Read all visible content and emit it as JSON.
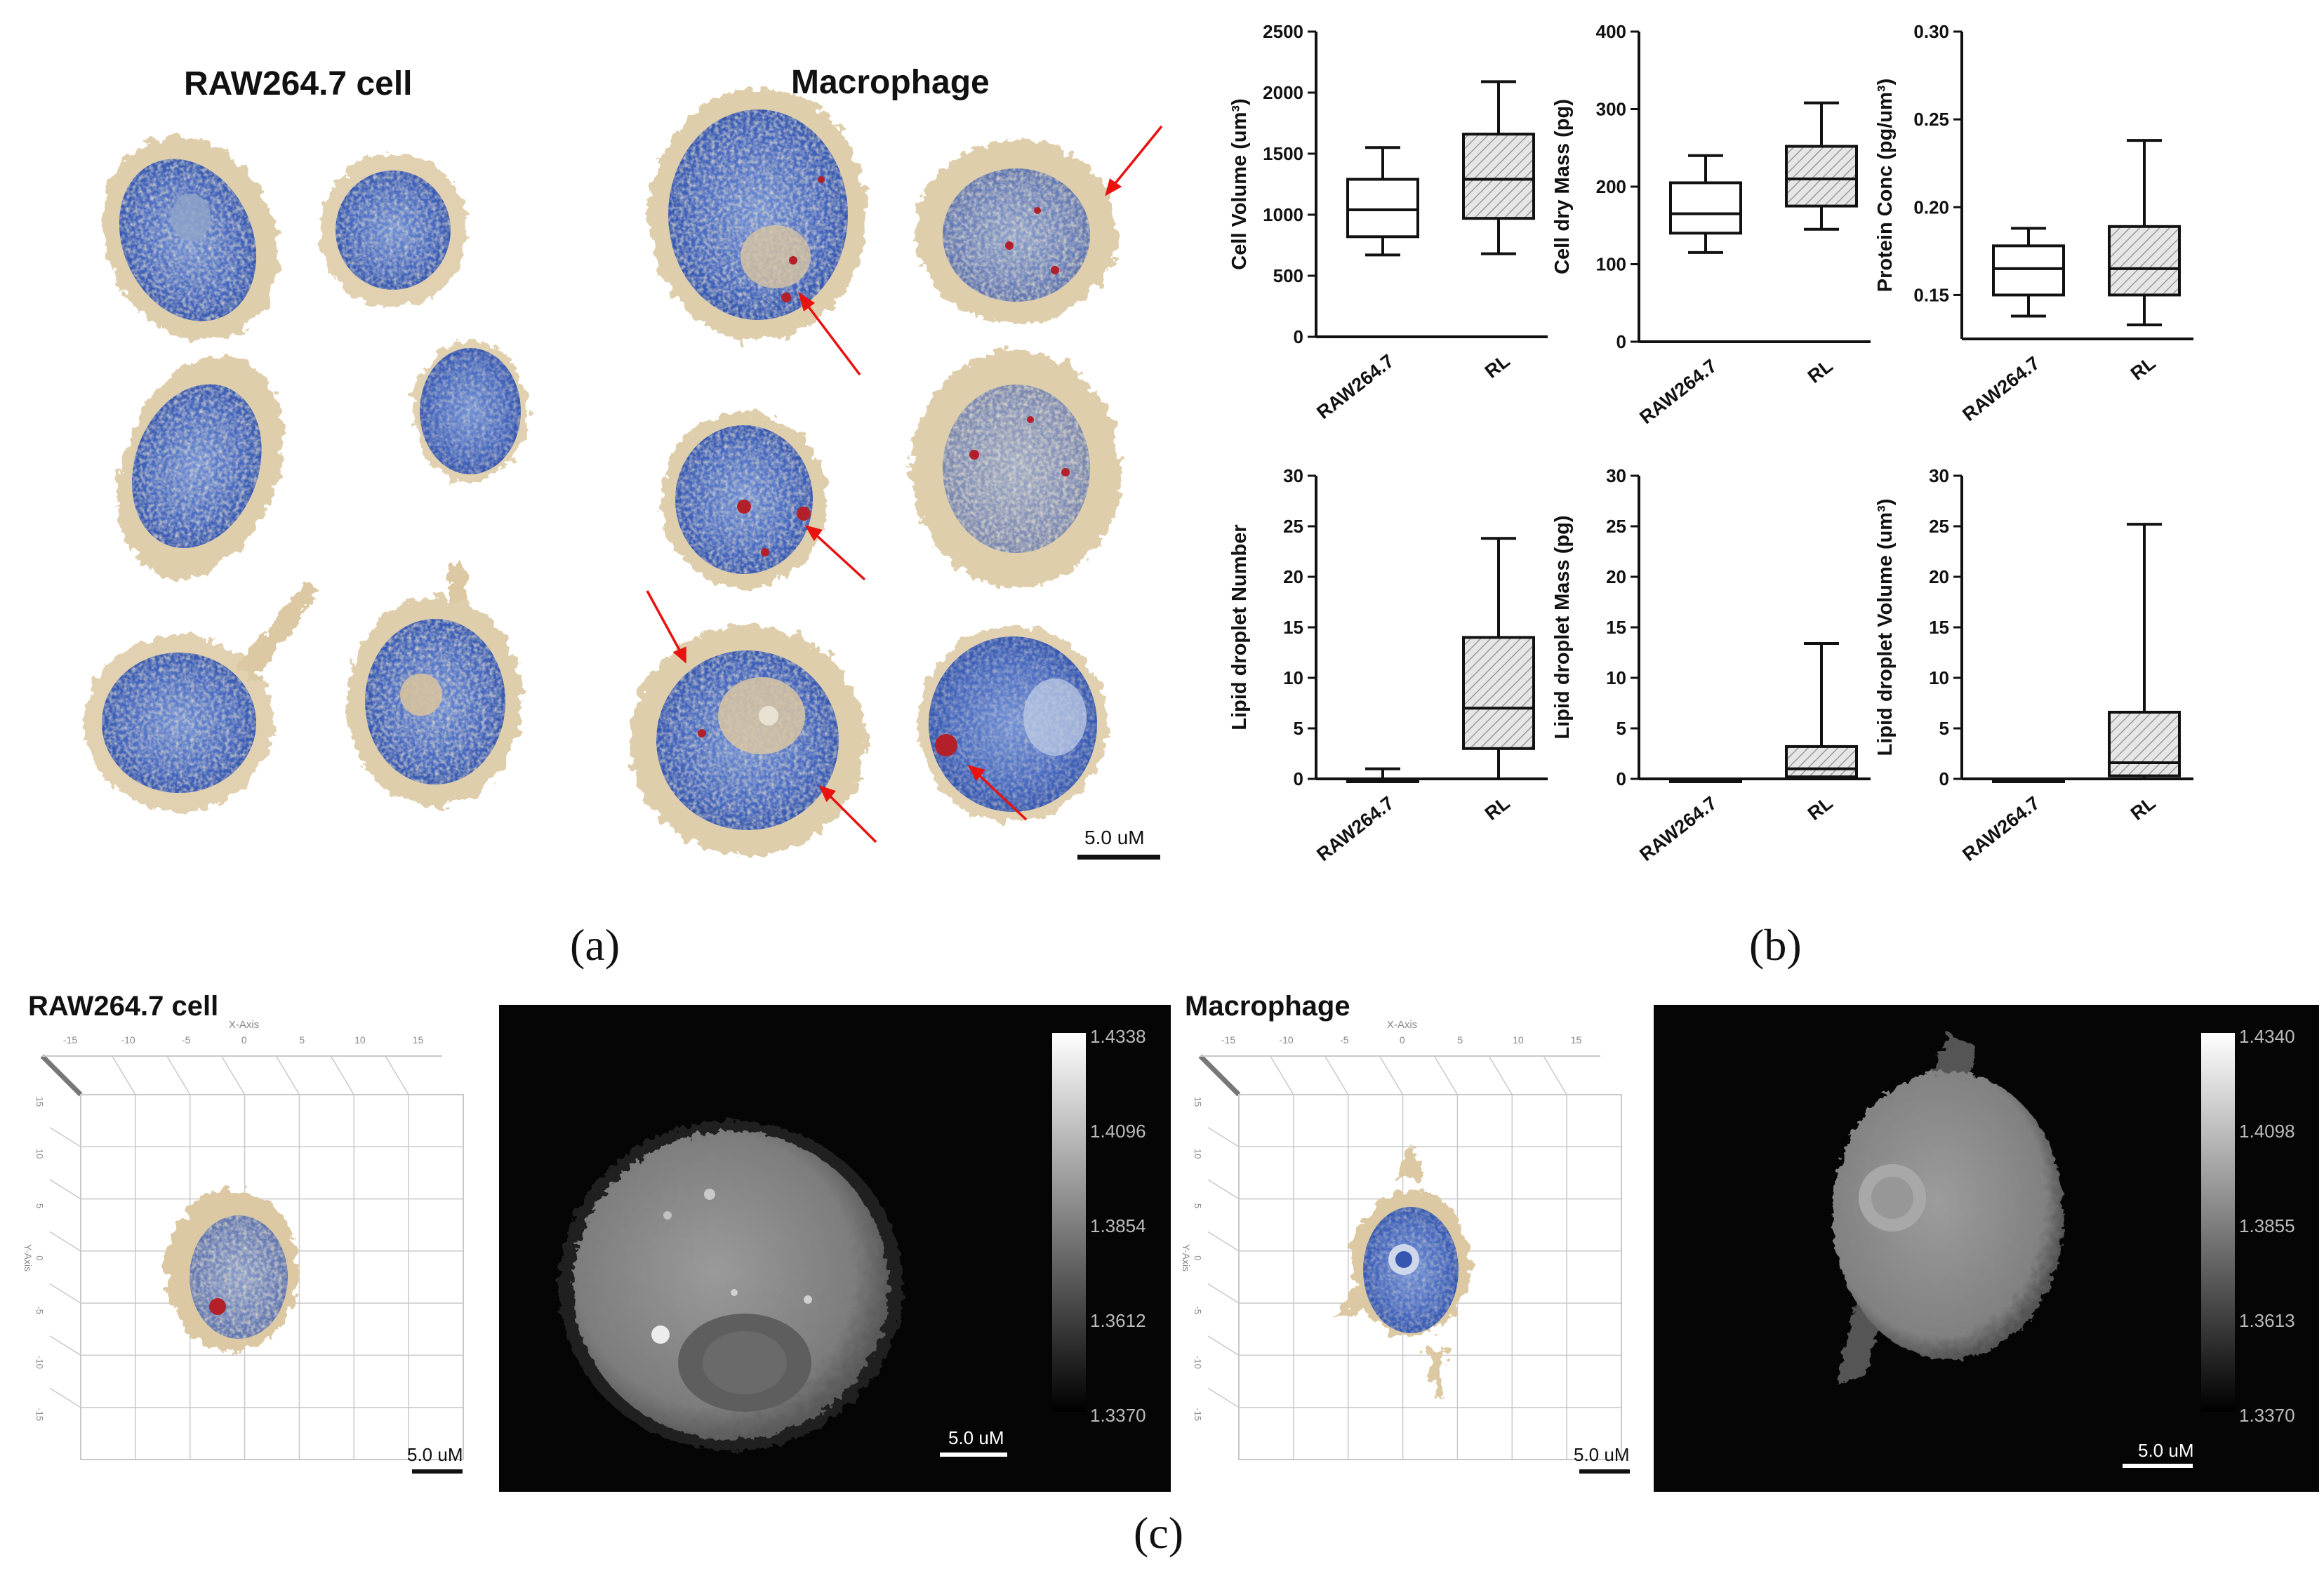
{
  "panel_a": {
    "heading_left": "RAW264.7 cell",
    "heading_right": "Macrophage",
    "scalebar": "5.0 uM",
    "letter": "(a)"
  },
  "panel_b": {
    "letter": "(b)"
  },
  "panel_c": {
    "letter": "(c)",
    "left_heading": "RAW264.7 cell",
    "right_heading": "Macrophage",
    "axis_title": "X-Axis",
    "y_axis_title": "Y-Axis",
    "x_ticks": [
      "-15",
      "-10",
      "-5",
      "0",
      "5",
      "10",
      "15"
    ],
    "y_ticks": [
      "15",
      "10",
      "5",
      "0",
      "-5",
      "-10",
      "-15"
    ],
    "scalebar": "5.0 uM",
    "left_colorbar": [
      "1.4338",
      "1.4096",
      "1.3854",
      "1.3612",
      "1.3370"
    ],
    "right_colorbar": [
      "1.4340",
      "1.4098",
      "1.3855",
      "1.3613",
      "1.3370"
    ]
  },
  "colors": {
    "cyto": "#dcc9a3",
    "nucleus": "#4a6cc0",
    "lipid": "#b3202a",
    "arrow": "#e8120f"
  },
  "chart_data": [
    {
      "type": "box",
      "ylabel": "Cell Volume (um³)",
      "categories": [
        "RAW264.7",
        "RL"
      ],
      "ylim": [
        0,
        2500
      ],
      "yticks": [
        0,
        500,
        1000,
        1500,
        2000,
        2500
      ],
      "boxes": [
        {
          "whislo": 670,
          "q1": 820,
          "med": 1040,
          "q3": 1290,
          "whishi": 1550
        },
        {
          "whislo": 680,
          "q1": 970,
          "med": 1290,
          "q3": 1660,
          "whishi": 2090
        }
      ]
    },
    {
      "type": "box",
      "ylabel": "Cell dry Mass  (pg)",
      "categories": [
        "RAW264.7",
        "RL"
      ],
      "ylim": [
        0,
        400
      ],
      "yticks": [
        0,
        100,
        200,
        300,
        400
      ],
      "boxes": [
        {
          "whislo": 115,
          "q1": 140,
          "med": 165,
          "q3": 205,
          "whishi": 240
        },
        {
          "whislo": 145,
          "q1": 175,
          "med": 210,
          "q3": 252,
          "whishi": 308
        }
      ]
    },
    {
      "type": "box",
      "ylabel": "Protein Conc  (pg/um³)",
      "categories": [
        "RAW264.7",
        "RL"
      ],
      "ylim": [
        0.125,
        0.3
      ],
      "yticks": [
        0.15,
        0.2,
        0.25,
        0.3
      ],
      "boxes": [
        {
          "whislo": 0.138,
          "q1": 0.15,
          "med": 0.165,
          "q3": 0.178,
          "whishi": 0.188
        },
        {
          "whislo": 0.133,
          "q1": 0.15,
          "med": 0.165,
          "q3": 0.189,
          "whishi": 0.238
        }
      ]
    },
    {
      "type": "box",
      "ylabel": "Lipid droplet Number",
      "categories": [
        "RAW264.7",
        "RL"
      ],
      "ylim": [
        0,
        30
      ],
      "yticks": [
        0,
        5,
        10,
        15,
        20,
        25,
        30
      ],
      "boxes": [
        {
          "whislo": 0,
          "q1": 0,
          "med": 0,
          "q3": 0,
          "whishi": 1
        },
        {
          "whislo": 0,
          "q1": 3,
          "med": 7,
          "q3": 14,
          "whishi": 23.8
        }
      ]
    },
    {
      "type": "box",
      "ylabel": "Lipid droplet Mass (pg)",
      "categories": [
        "RAW264.7",
        "RL"
      ],
      "ylim": [
        0,
        30
      ],
      "yticks": [
        0,
        5,
        10,
        15,
        20,
        25,
        30
      ],
      "boxes": [
        {
          "whislo": 0,
          "q1": 0,
          "med": 0,
          "q3": 0,
          "whishi": 0
        },
        {
          "whislo": 0,
          "q1": 0.2,
          "med": 1,
          "q3": 3.2,
          "whishi": 13.4
        }
      ]
    },
    {
      "type": "box",
      "ylabel": "Lipid droplet Volume  (um³)",
      "categories": [
        "RAW264.7",
        "RL"
      ],
      "ylim": [
        0,
        30
      ],
      "yticks": [
        0,
        5,
        10,
        15,
        20,
        25,
        30
      ],
      "boxes": [
        {
          "whislo": 0,
          "q1": 0,
          "med": 0,
          "q3": 0,
          "whishi": 0
        },
        {
          "whislo": 0,
          "q1": 0.3,
          "med": 1.6,
          "q3": 6.6,
          "whishi": 25.2
        }
      ]
    }
  ]
}
